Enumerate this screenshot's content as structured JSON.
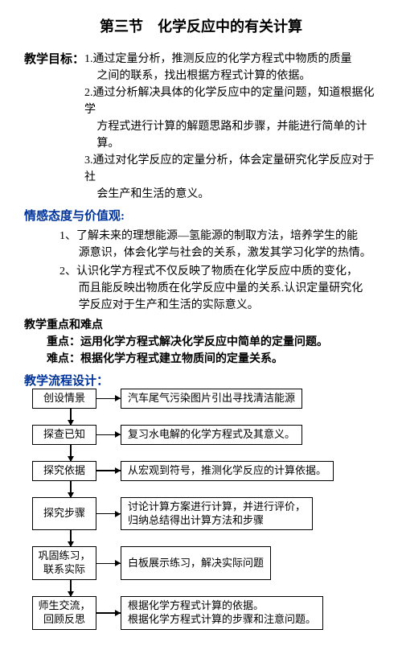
{
  "title": "第三节　化学反应中的有关计算",
  "goals": {
    "label": "教学目标：",
    "items": [
      [
        "1.通过定量分析，推测反应的化学方程式中物质的质量",
        "之间的联系，找出根据方程式计算的依据。"
      ],
      [
        "2.通过分析解决具体的化学反应中的定量问题，知道根据化学",
        "方程式进行计算的解题思路和步骤，并能进行简单的计算。"
      ],
      [
        "3.通过对化学反应的定量分析，体会定量研究化学反应对于社",
        "会生产和生活的意义。"
      ]
    ]
  },
  "values": {
    "heading": "情感态度与价值观:",
    "items": [
      [
        "1、了解未来的理想能源—氢能源的制取方法，培养学生的能",
        "源意识，体会化学与社会的关系，激发其学习化学的热情。"
      ],
      [
        "2、认识化学方程式不仅反映了物质在化学反应中质的变化，",
        "而且能反映出物质在化学反应中量的关系.认识定量研究化",
        "学反应对于生产和生活的实际意义。"
      ]
    ]
  },
  "emphasis": {
    "heading": "教学重点和难点",
    "key_label": "重点：",
    "key_text": "运用化学方程式解决化学反应中简单的定量问题。",
    "diff_label": "难点：",
    "diff_text": "根据化学方程式建立物质间的定量关系。"
  },
  "flow": {
    "heading": "教学流程设计：",
    "steps": [
      {
        "left": [
          "创设情景"
        ],
        "right": [
          "汽车尾气污染图片引出寻找清洁能源"
        ]
      },
      {
        "left": [
          "探查已知"
        ],
        "right": [
          "复习水电解的化学方程式及其意义。"
        ]
      },
      {
        "left": [
          "探究依据"
        ],
        "right": [
          "从宏观到符号，推测化学反应的计算依据。"
        ]
      },
      {
        "left": [
          "探究步骤"
        ],
        "right": [
          "讨论计算方案进行计算，并进行评价，",
          "归纳总结得出计算方法和步骤"
        ]
      },
      {
        "left": [
          "巩固练习，",
          "联系实际"
        ],
        "right": [
          "白板展示练习，解决实际问题"
        ]
      },
      {
        "left": [
          "师生交流，",
          "回顾反思"
        ],
        "right": [
          "根据化学方程式计算的依据。",
          "根据化学方程式计算的步骤和注意问题。"
        ]
      }
    ]
  }
}
